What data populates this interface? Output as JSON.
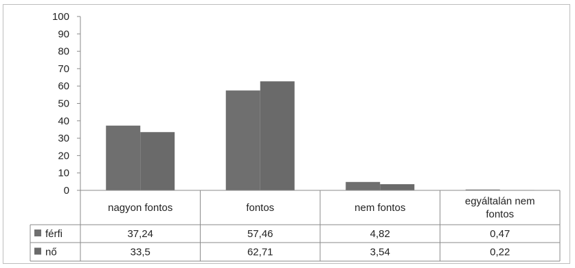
{
  "chart_data": {
    "type": "bar",
    "title": "",
    "categories": [
      "nagyon fontos",
      "fontos",
      "nem fontos",
      "egyáltalán nem fontos"
    ],
    "category_lines": [
      [
        "nagyon fontos"
      ],
      [
        "fontos"
      ],
      [
        "nem fontos"
      ],
      [
        "egyáltalán nem",
        "fontos"
      ]
    ],
    "series": [
      {
        "name": "férfi",
        "values": [
          37.24,
          57.46,
          4.82,
          0.47
        ],
        "display": [
          "37,24",
          "57,46",
          "4,82",
          "0,47"
        ]
      },
      {
        "name": "nő",
        "values": [
          33.5,
          62.71,
          3.54,
          0.22
        ],
        "display": [
          "33,5",
          "62,71",
          "3,54",
          "0,22"
        ]
      }
    ],
    "ylim": [
      0,
      100
    ],
    "yticks": [
      0,
      10,
      20,
      30,
      40,
      50,
      60,
      70,
      80,
      90,
      100
    ],
    "grid": false,
    "legend": "data table",
    "colors": {
      "bars": [
        "#6f6f6f",
        "#6a6a6a"
      ],
      "axis": "#8a8a8a"
    }
  }
}
